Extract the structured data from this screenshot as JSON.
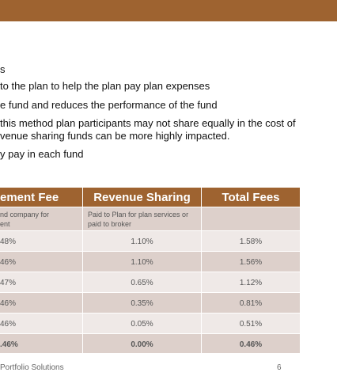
{
  "bullets": [
    "s",
    "to the plan to help the plan pay plan expenses",
    "e fund and reduces the performance of the fund",
    "this method plan participants may not share equally in the cost of",
    "venue sharing funds can be more highly impacted.",
    "y pay in each fund"
  ],
  "table": {
    "header": [
      "ement Fee",
      "Revenue Sharing",
      "Total Fees"
    ],
    "rows": [
      [
        [
          "nd company for",
          "ent"
        ],
        [
          "Paid to Plan for plan services or",
          "paid to broker"
        ],
        []
      ],
      [
        [
          "48%"
        ],
        [
          "1.10%"
        ],
        [
          "1.58%"
        ]
      ],
      [
        [
          "46%"
        ],
        [
          "1.10%"
        ],
        [
          "1.56%"
        ]
      ],
      [
        [
          "47%"
        ],
        [
          "0.65%"
        ],
        [
          "1.12%"
        ]
      ],
      [
        [
          "46%"
        ],
        [
          "0.35%"
        ],
        [
          "0.81%"
        ]
      ],
      [
        [
          "46%"
        ],
        [
          "0.05%"
        ],
        [
          "0.51%"
        ]
      ],
      [
        [
          ".46%"
        ],
        [
          "0.00%"
        ],
        [
          "0.46%"
        ]
      ]
    ]
  },
  "footer": {
    "text": "Portfolio Solutions",
    "page": "6"
  }
}
